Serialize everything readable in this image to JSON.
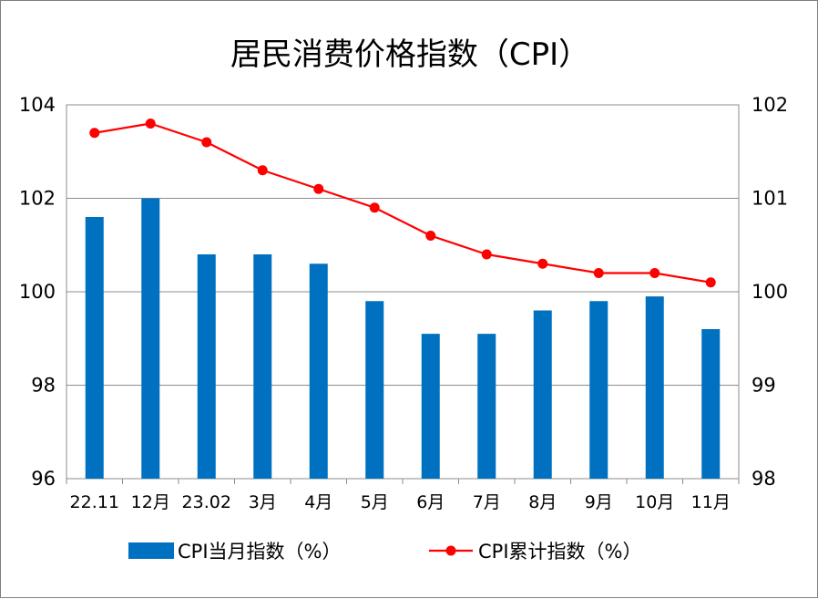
{
  "chart_data": {
    "type": "bar",
    "title": "居民消费价格指数（CPI）",
    "categories": [
      "22.11",
      "12月",
      "23.02",
      "3月",
      "4月",
      "5月",
      "6月",
      "7月",
      "8月",
      "9月",
      "10月",
      "11月"
    ],
    "series": [
      {
        "name": "CPI当月指数（%）",
        "type": "bar",
        "axis": "left",
        "color": "#0070c0",
        "values": [
          101.6,
          102.0,
          100.8,
          100.8,
          100.6,
          99.8,
          99.1,
          99.1,
          99.6,
          99.8,
          99.9,
          99.2
        ]
      },
      {
        "name": "CPI累计指数（%）",
        "type": "line",
        "axis": "right",
        "color": "#ff0000",
        "values": [
          101.7,
          101.8,
          101.6,
          101.3,
          101.1,
          100.9,
          100.6,
          100.4,
          100.3,
          100.2,
          100.2,
          100.1
        ]
      }
    ],
    "y_left": {
      "min": 96,
      "max": 104,
      "ticks": [
        "96",
        "98",
        "100",
        "102",
        "104"
      ],
      "tick_values": [
        96,
        98,
        100,
        102,
        104
      ]
    },
    "y_right": {
      "min": 98,
      "max": 102,
      "ticks": [
        "98",
        "99",
        "100",
        "101",
        "102"
      ],
      "tick_values": [
        98,
        99,
        100,
        101,
        102
      ]
    },
    "grid": true,
    "legend_position": "bottom"
  }
}
